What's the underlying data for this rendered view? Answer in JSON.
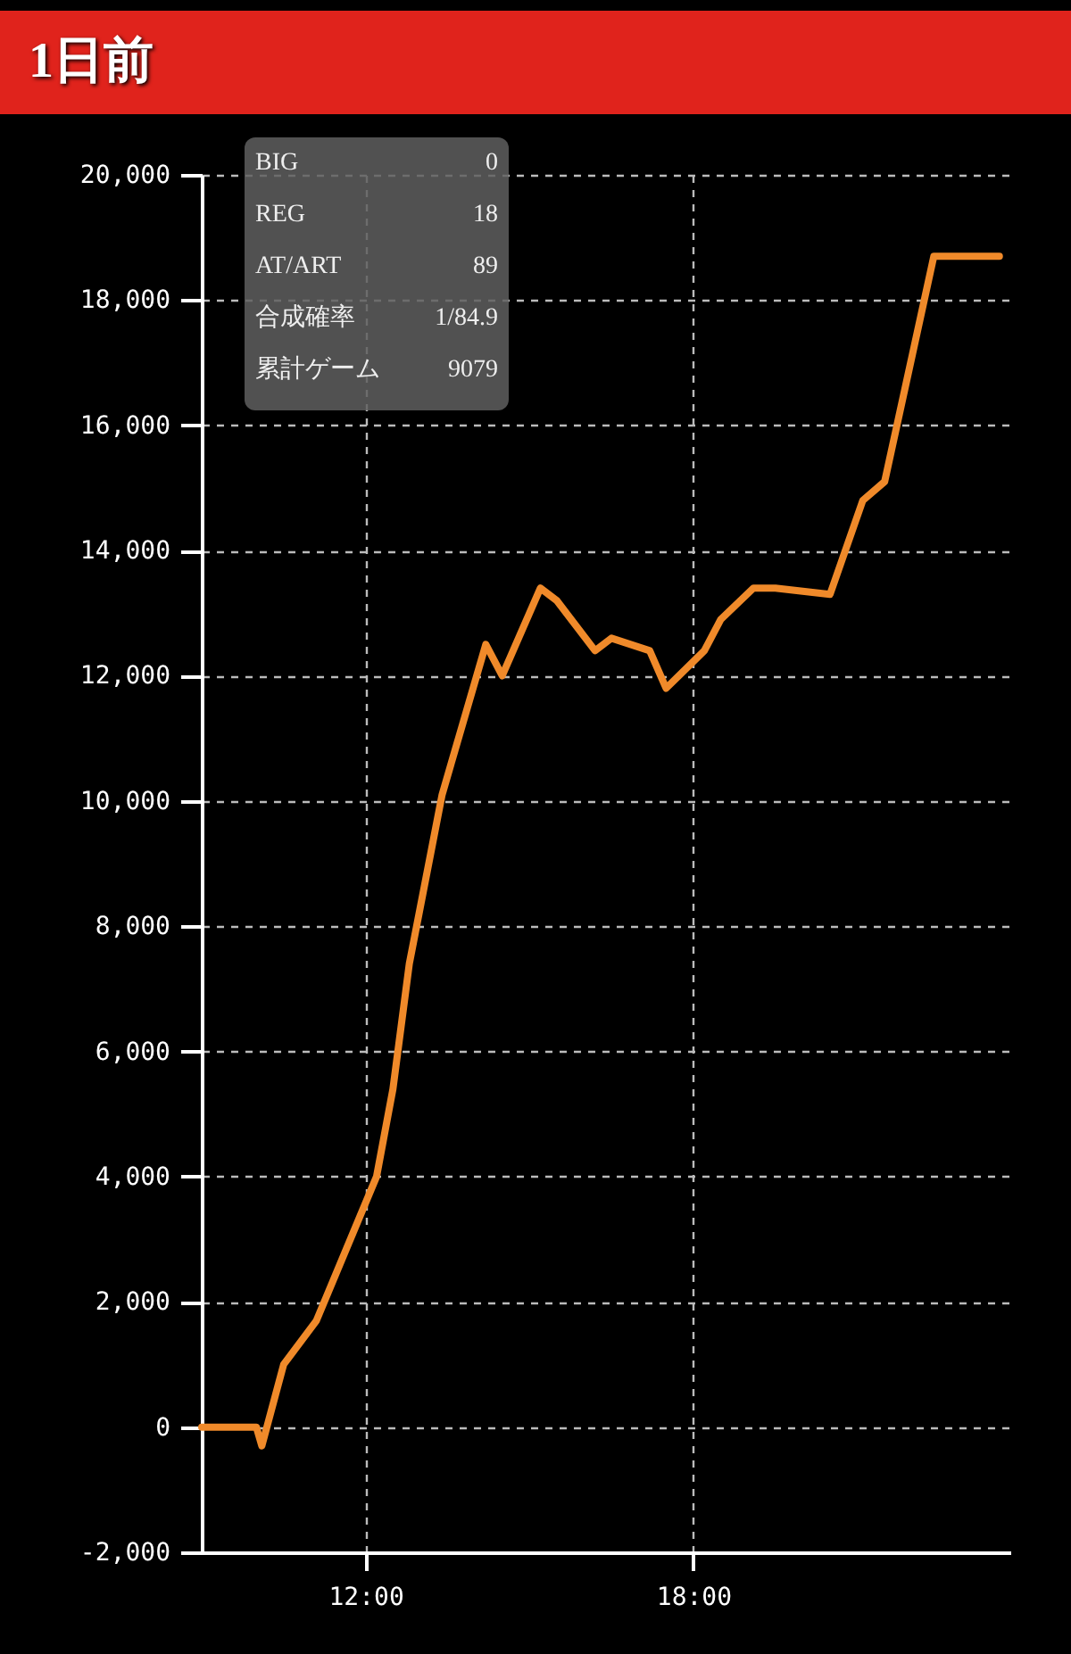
{
  "chart_data": {
    "type": "line",
    "title": "1日前",
    "annotations": [
      "BIG",
      "0",
      "REG",
      "18",
      "AT/ART",
      "89",
      "合成確率",
      "1/84.9",
      "累計ゲーム",
      "9079"
    ],
    "x": [
      9.0,
      10.0,
      10.1,
      10.5,
      11.1,
      12.2,
      12.5,
      12.8,
      13.4,
      13.6,
      14.2,
      14.5,
      15.2,
      15.5,
      16.2,
      16.5,
      17.2,
      17.5,
      18.2,
      18.5,
      19.1,
      19.5,
      20.5,
      21.1,
      21.5,
      22.4,
      23.6
    ],
    "series": [
      {
        "color": "#f08a2a",
        "values": [
          0,
          0,
          -300,
          1000,
          1700,
          4000,
          5400,
          7400,
          10100,
          10700,
          12500,
          12000,
          13400,
          13200,
          12400,
          12600,
          12400,
          11800,
          12400,
          12900,
          13400,
          13400,
          13300,
          14800,
          15100,
          18700,
          18700
        ]
      }
    ],
    "xlim": [
      9,
      23.8
    ],
    "xticks": [
      {
        "value": 12,
        "label": "12:00"
      },
      {
        "value": 18,
        "label": "18:00"
      }
    ],
    "ylim": [
      -2000,
      20000
    ],
    "yticks": [
      {
        "value": -2000,
        "label": "-2,000"
      },
      {
        "value": 0,
        "label": "0"
      },
      {
        "value": 2000,
        "label": "2,000"
      },
      {
        "value": 4000,
        "label": "4,000"
      },
      {
        "value": 6000,
        "label": "6,000"
      },
      {
        "value": 8000,
        "label": "8,000"
      },
      {
        "value": 10000,
        "label": "10,000"
      },
      {
        "value": 12000,
        "label": "12,000"
      },
      {
        "value": 14000,
        "label": "14,000"
      },
      {
        "value": 16000,
        "label": "16,000"
      },
      {
        "value": 18000,
        "label": "18,000"
      },
      {
        "value": 20000,
        "label": "20,000"
      }
    ],
    "grid": true,
    "line_style": "solid"
  }
}
